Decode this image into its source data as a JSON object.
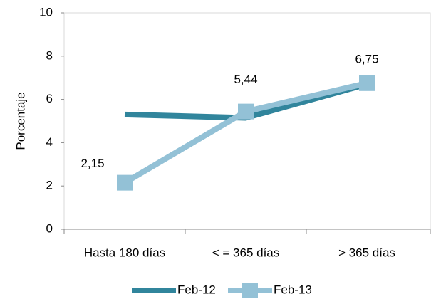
{
  "chart_data": {
    "type": "line",
    "y_label": "Porcentaje",
    "categories": [
      "Hasta 180 días",
      "< = 365 días",
      "> 365 días"
    ],
    "series": [
      {
        "name": "Feb-12",
        "color": "#31859c",
        "values": [
          5.3,
          5.15,
          6.7
        ]
      },
      {
        "name": "Feb-13",
        "color": "#93c1d6",
        "values": [
          2.15,
          5.44,
          6.75
        ],
        "value_labels": [
          "2,15",
          "5,44",
          "6,75"
        ],
        "marker": "square"
      }
    ],
    "ylim": [
      0,
      10
    ],
    "yticks": [
      0,
      2,
      4,
      6,
      8,
      10
    ],
    "legend": "bottom"
  }
}
